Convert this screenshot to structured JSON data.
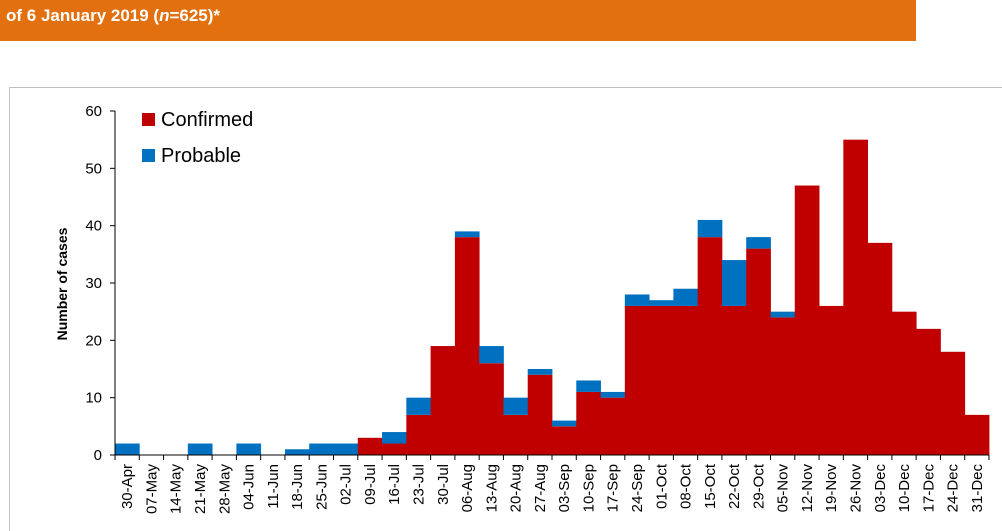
{
  "header": {
    "title_part1": "of 6 January 2019 (",
    "title_n": "n",
    "title_part2": "=625)*",
    "color": "#e2700f"
  },
  "chart_data": {
    "type": "bar",
    "stacked": true,
    "ylabel": "Number of cases",
    "xlabel": "",
    "ylim": [
      0,
      60
    ],
    "yticks": [
      0,
      10,
      20,
      30,
      40,
      50,
      60
    ],
    "legend_position": "top-left",
    "categories": [
      "30-Apr",
      "07-May",
      "14-May",
      "21-May",
      "28-May",
      "04-Jun",
      "11-Jun",
      "18-Jun",
      "25-Jun",
      "02-Jul",
      "09-Jul",
      "16-Jul",
      "23-Jul",
      "30-Jul",
      "06-Aug",
      "13-Aug",
      "20-Aug",
      "27-Aug",
      "03-Sep",
      "10-Sep",
      "17-Sep",
      "24-Sep",
      "01-Oct",
      "08-Oct",
      "15-Oct",
      "22-Oct",
      "29-Oct",
      "05-Nov",
      "12-Nov",
      "19-Nov",
      "26-Nov",
      "03-Dec",
      "10-Dec",
      "17-Dec",
      "24-Dec",
      "31-Dec"
    ],
    "series": [
      {
        "name": "Confirmed",
        "color": "#c00000",
        "values": [
          0,
          0,
          0,
          0,
          0,
          0,
          0,
          0,
          0,
          0,
          3,
          2,
          7,
          19,
          38,
          16,
          7,
          14,
          5,
          11,
          10,
          26,
          26,
          26,
          38,
          26,
          36,
          24,
          47,
          26,
          55,
          37,
          25,
          22,
          18,
          7
        ]
      },
      {
        "name": "Probable",
        "color": "#0070c0",
        "values": [
          2,
          0,
          0,
          2,
          0,
          2,
          0,
          1,
          2,
          2,
          0,
          2,
          3,
          0,
          1,
          3,
          3,
          1,
          1,
          2,
          1,
          2,
          1,
          3,
          3,
          8,
          2,
          1,
          0,
          0,
          0,
          0,
          0,
          0,
          0,
          0
        ]
      }
    ]
  }
}
